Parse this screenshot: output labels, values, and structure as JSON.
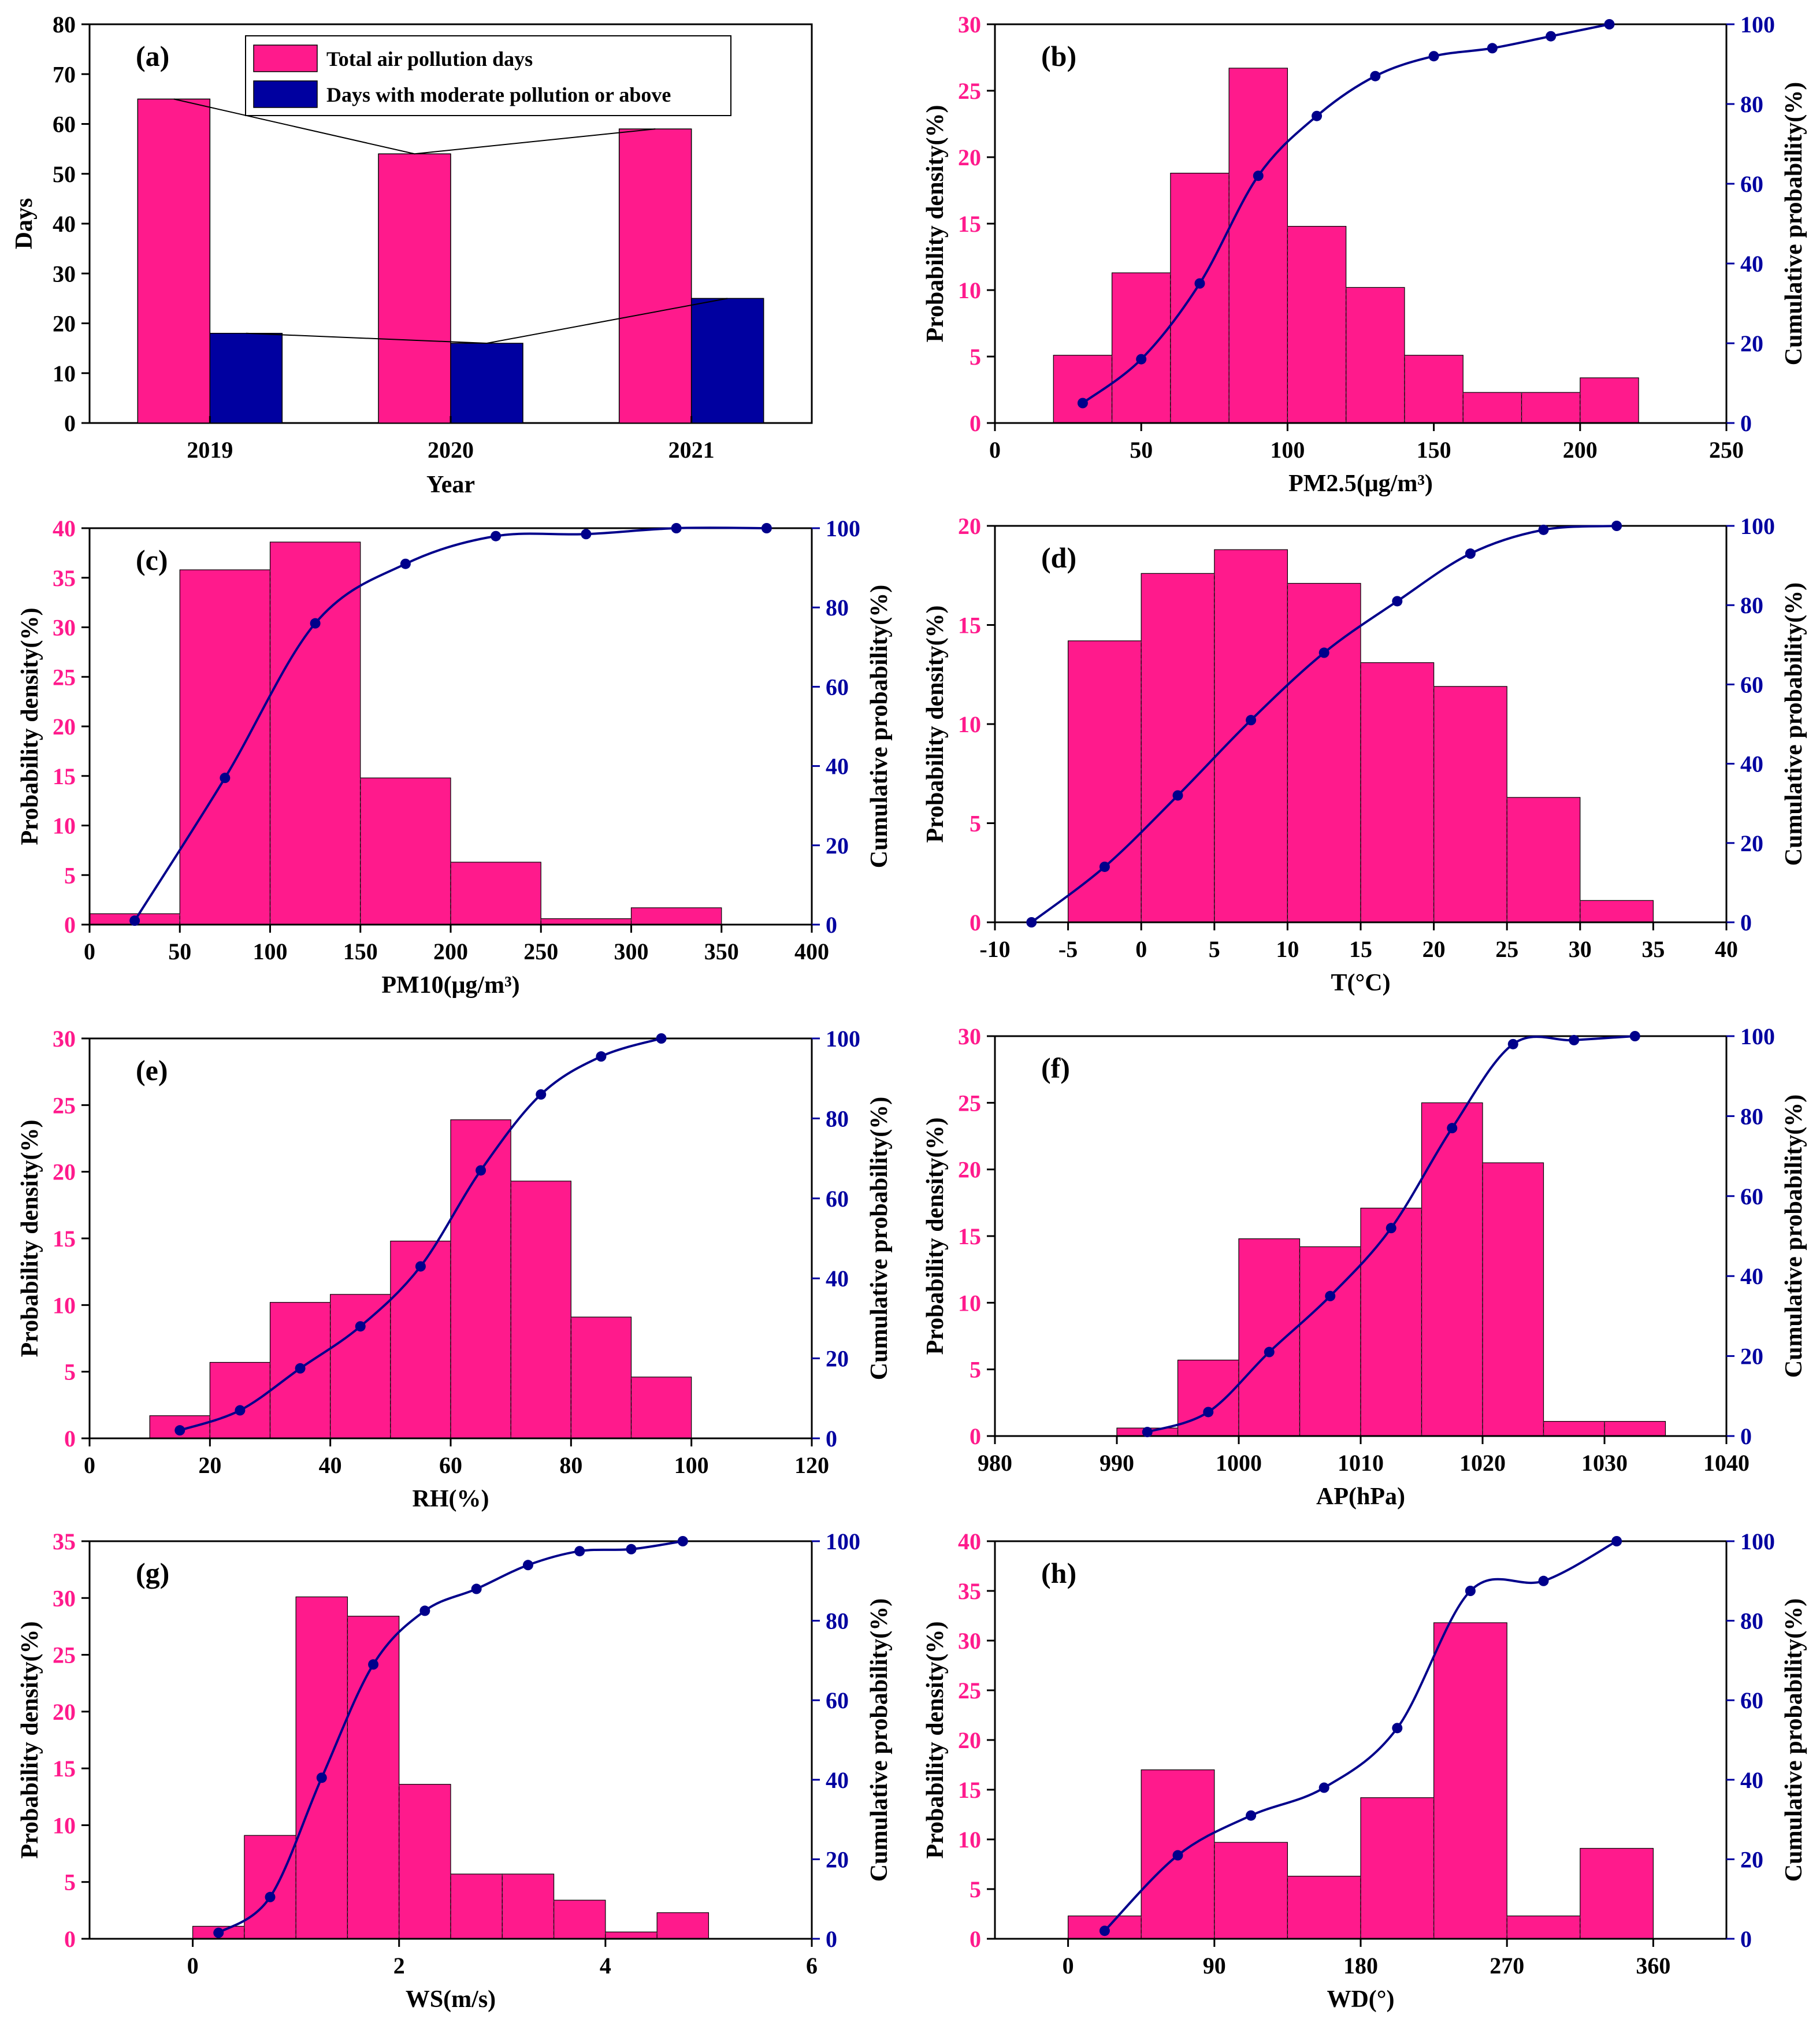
{
  "colors": {
    "bar": "#FF1A8C",
    "navy": "#0000A0",
    "trend": "#000000",
    "bar_dark": "#00008B"
  },
  "chart_data": [
    {
      "id": "a",
      "panel_label": "(a)",
      "type": "bar",
      "categories": [
        "2019",
        "2020",
        "2021"
      ],
      "series": [
        {
          "name": "Total air pollution days",
          "values": [
            65,
            54,
            59
          ]
        },
        {
          "name": "Days with moderate pollution or above",
          "values": [
            18,
            16,
            25
          ]
        }
      ],
      "xlabel": "Year",
      "ylabel": "Days",
      "ylim": [
        0,
        80
      ],
      "yticks": [
        "0",
        "10",
        "20",
        "30",
        "40",
        "50",
        "60",
        "70",
        "80"
      ],
      "legend": "top-center"
    },
    {
      "id": "b",
      "panel_label": "(b)",
      "type": "bar",
      "xlabel": "PM2.5(μg/m³)",
      "ylabel": "Probability density(%)",
      "y2label": "Cumulative probability(%)",
      "xlim": [
        0,
        250
      ],
      "ylim": [
        0,
        30
      ],
      "y2lim": [
        0,
        100
      ],
      "xticks": [
        "0",
        "50",
        "100",
        "150",
        "200",
        "250"
      ],
      "yticks": [
        "0",
        "5",
        "10",
        "15",
        "20",
        "25",
        "30"
      ],
      "y2ticks": [
        "0",
        "20",
        "40",
        "60",
        "80",
        "100"
      ],
      "bins": [
        20,
        40,
        60,
        80,
        100,
        120,
        140,
        160,
        180,
        200,
        220
      ],
      "density": [
        5.1,
        11.3,
        18.8,
        26.7,
        14.8,
        10.2,
        5.1,
        2.3,
        2.3,
        3.4
      ],
      "cum_x": [
        30,
        50,
        70,
        90,
        110,
        130,
        150,
        170,
        190,
        210
      ],
      "cum_y": [
        5,
        16,
        35,
        62,
        77,
        87,
        92,
        94,
        97,
        100
      ]
    },
    {
      "id": "c",
      "panel_label": "(c)",
      "type": "bar",
      "xlabel": "PM10(μg/m³)",
      "ylabel": "Probability density(%)",
      "y2label": "Cumulative probability(%)",
      "xlim": [
        0,
        400
      ],
      "ylim": [
        0,
        40
      ],
      "y2lim": [
        0,
        100
      ],
      "xticks": [
        "0",
        "50",
        "100",
        "150",
        "200",
        "250",
        "300",
        "350",
        "400"
      ],
      "yticks": [
        "0",
        "5",
        "10",
        "15",
        "20",
        "25",
        "30",
        "35",
        "40"
      ],
      "y2ticks": [
        "0",
        "20",
        "40",
        "60",
        "80",
        "100"
      ],
      "bins": [
        0,
        50,
        100,
        150,
        200,
        250,
        300,
        350
      ],
      "density": [
        1.1,
        35.8,
        38.6,
        14.8,
        6.3,
        0.6,
        1.7
      ],
      "cum_x": [
        25,
        75,
        125,
        175,
        225,
        275,
        325,
        375
      ],
      "cum_y": [
        1,
        37,
        76,
        91,
        98,
        98.5,
        100,
        100
      ]
    },
    {
      "id": "d",
      "panel_label": "(d)",
      "type": "bar",
      "xlabel": "T(°C)",
      "ylabel": "Probability density(%)",
      "y2label": "Cumulative probability(%)",
      "xlim": [
        -10,
        40
      ],
      "ylim": [
        0,
        20
      ],
      "y2lim": [
        0,
        100
      ],
      "xticks": [
        "-10",
        "-5",
        "0",
        "5",
        "10",
        "15",
        "20",
        "25",
        "30",
        "35",
        "40"
      ],
      "yticks": [
        "0",
        "5",
        "10",
        "15",
        "20"
      ],
      "y2ticks": [
        "0",
        "20",
        "40",
        "60",
        "80",
        "100"
      ],
      "bins": [
        -5,
        0,
        5,
        10,
        15,
        20,
        25,
        30,
        35
      ],
      "density": [
        14.2,
        17.6,
        18.8,
        17.1,
        13.1,
        11.9,
        6.3,
        1.1
      ],
      "cum_x": [
        -7.5,
        -2.5,
        2.5,
        7.5,
        12.5,
        17.5,
        22.5,
        27.5,
        32.5
      ],
      "cum_y": [
        0,
        14,
        32,
        51,
        68,
        81,
        93,
        99,
        100
      ]
    },
    {
      "id": "e",
      "panel_label": "(e)",
      "type": "bar",
      "xlabel": "RH(%)",
      "ylabel": "Probability density(%)",
      "y2label": "Cumulative probability(%)",
      "xlim": [
        0,
        120
      ],
      "ylim": [
        0,
        30
      ],
      "y2lim": [
        0,
        100
      ],
      "xticks": [
        "0",
        "20",
        "40",
        "60",
        "80",
        "100",
        "120"
      ],
      "yticks": [
        "0",
        "5",
        "10",
        "15",
        "20",
        "25",
        "30"
      ],
      "y2ticks": [
        "0",
        "20",
        "40",
        "60",
        "80",
        "100"
      ],
      "bins": [
        10,
        20,
        30,
        40,
        50,
        60,
        70,
        80,
        90,
        100
      ],
      "density": [
        1.7,
        5.7,
        10.2,
        10.8,
        14.8,
        23.9,
        19.3,
        9.1,
        4.6
      ],
      "cum_x": [
        15,
        25,
        35,
        45,
        55,
        65,
        75,
        85,
        95
      ],
      "cum_y": [
        2,
        7,
        17.5,
        28,
        43,
        67,
        86,
        95.5,
        100
      ]
    },
    {
      "id": "f",
      "panel_label": "(f)",
      "type": "bar",
      "xlabel": "AP(hPa)",
      "ylabel": "Probability density(%)",
      "y2label": "Cumulative probability(%)",
      "xlim": [
        980,
        1040
      ],
      "ylim": [
        0,
        30
      ],
      "y2lim": [
        0,
        100
      ],
      "xticks": [
        "980",
        "990",
        "1000",
        "1010",
        "1020",
        "1030",
        "1040"
      ],
      "yticks": [
        "0",
        "5",
        "10",
        "15",
        "20",
        "25",
        "30"
      ],
      "y2ticks": [
        "0",
        "20",
        "40",
        "60",
        "80",
        "100"
      ],
      "bins": [
        990,
        995,
        1000,
        1005,
        1010,
        1015,
        1020,
        1025,
        1030,
        1035
      ],
      "density": [
        0.6,
        5.7,
        14.8,
        14.2,
        17.1,
        25.0,
        20.5,
        1.1,
        1.1
      ],
      "cum_x": [
        992.5,
        997.5,
        1002.5,
        1007.5,
        1012.5,
        1017.5,
        1022.5,
        1027.5,
        1032.5
      ],
      "cum_y": [
        1,
        6,
        21,
        35,
        52,
        77,
        98,
        99,
        100
      ]
    },
    {
      "id": "g",
      "panel_label": "(g)",
      "type": "bar",
      "xlabel": "WS(m/s)",
      "ylabel": "Probability density(%)",
      "y2label": "Cumulative probability(%)",
      "xlim": [
        -1,
        6
      ],
      "ylim": [
        0,
        35
      ],
      "y2lim": [
        0,
        100
      ],
      "xticks": [
        "0",
        "2",
        "4",
        "6"
      ],
      "yticks": [
        "0",
        "5",
        "10",
        "15",
        "20",
        "25",
        "30",
        "35"
      ],
      "y2ticks": [
        "0",
        "20",
        "40",
        "60",
        "80",
        "100"
      ],
      "bins": [
        0,
        0.5,
        1,
        1.5,
        2,
        2.5,
        3,
        3.5,
        4,
        4.5,
        5
      ],
      "density": [
        1.1,
        9.1,
        30.1,
        28.4,
        13.6,
        5.7,
        5.7,
        3.4,
        0.6,
        2.3
      ],
      "cum_x": [
        0.25,
        0.75,
        1.25,
        1.75,
        2.25,
        2.75,
        3.25,
        3.75,
        4.25,
        4.75
      ],
      "cum_y": [
        1.5,
        10.5,
        40.5,
        69,
        82.5,
        88,
        94,
        97.5,
        98,
        100
      ]
    },
    {
      "id": "h",
      "panel_label": "(h)",
      "type": "bar",
      "xlabel": "WD(°)",
      "ylabel": "Probability density(%)",
      "y2label": "Cumulative probability(%)",
      "xlim": [
        -45,
        405
      ],
      "ylim": [
        0,
        40
      ],
      "y2lim": [
        0,
        100
      ],
      "xticks": [
        "0",
        "90",
        "180",
        "270",
        "360"
      ],
      "yticks": [
        "0",
        "5",
        "10",
        "15",
        "20",
        "25",
        "30",
        "35",
        "40"
      ],
      "y2ticks": [
        "0",
        "20",
        "40",
        "60",
        "80",
        "100"
      ],
      "bins": [
        0,
        45,
        90,
        135,
        180,
        225,
        270,
        315,
        360
      ],
      "density": [
        2.3,
        17.0,
        9.7,
        6.3,
        14.2,
        31.8,
        2.3,
        9.1
      ],
      "cum_x": [
        22.5,
        67.5,
        112.5,
        157.5,
        202.5,
        247.5,
        292.5,
        337.5
      ],
      "cum_y": [
        2,
        21,
        31,
        38,
        53,
        87.5,
        90,
        100
      ]
    }
  ]
}
